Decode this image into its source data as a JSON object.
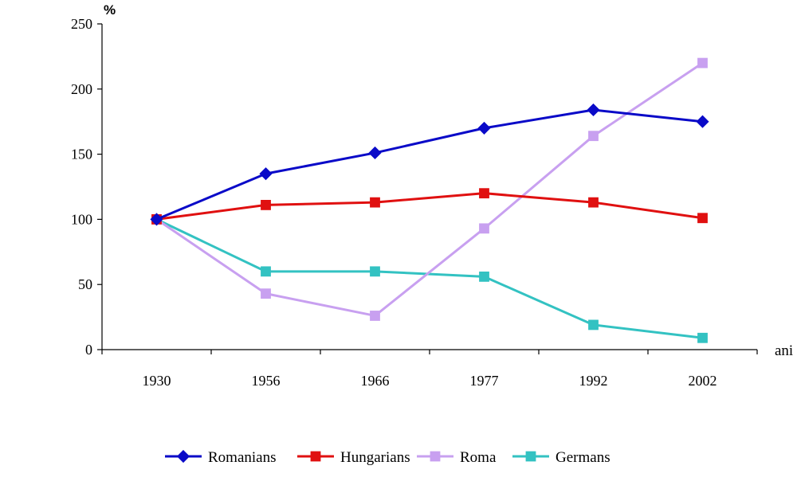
{
  "chart_data": {
    "type": "line",
    "ylabel": "%",
    "xlabel": "ani",
    "ylim": [
      0,
      250
    ],
    "yticks": [
      0,
      50,
      100,
      150,
      200,
      250
    ],
    "categories": [
      "1930",
      "1956",
      "1966",
      "1977",
      "1992",
      "2002"
    ],
    "grid": false,
    "legend_position": "bottom",
    "series": [
      {
        "name": "Romanians",
        "color": "#0a0ac8",
        "marker": "diamond",
        "values": [
          100,
          135,
          151,
          170,
          184,
          175
        ]
      },
      {
        "name": "Hungarians",
        "color": "#e01010",
        "marker": "square",
        "values": [
          100,
          111,
          113,
          120,
          113,
          101
        ]
      },
      {
        "name": "Roma",
        "color": "#c8a0f0",
        "marker": "square",
        "values": [
          100,
          43,
          26,
          93,
          164,
          220
        ]
      },
      {
        "name": "Germans",
        "color": "#33c2c2",
        "marker": "square",
        "values": [
          100,
          60,
          60,
          56,
          19,
          9
        ]
      }
    ]
  }
}
